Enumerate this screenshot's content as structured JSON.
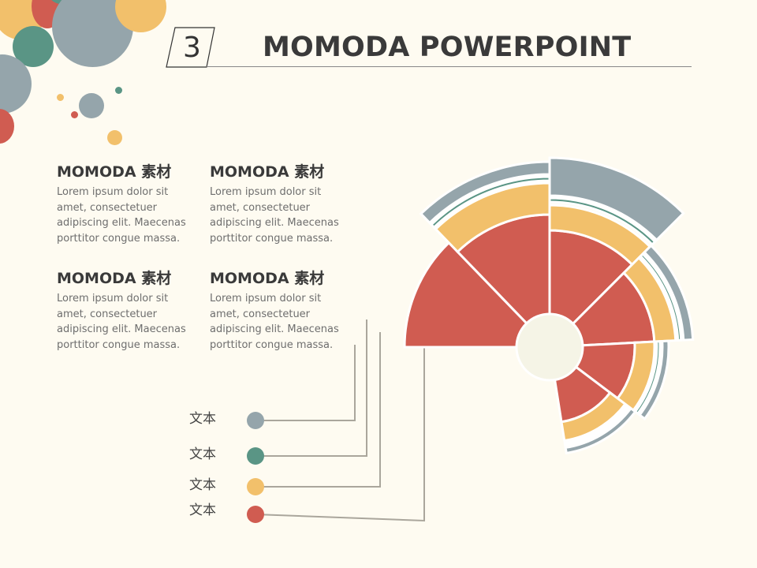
{
  "slide": {
    "number": "3",
    "title": "MOMODA POWERPOINT"
  },
  "blocks": [
    {
      "heading": "MOMODA 素材",
      "body": "Lorem ipsum dolor sit amet, consectetuer adipiscing elit. Maecenas porttitor congue massa."
    },
    {
      "heading": "MOMODA 素材",
      "body": "Lorem ipsum dolor sit amet, consectetuer adipiscing elit. Maecenas porttitor congue massa."
    },
    {
      "heading": "MOMODA 素材",
      "body": "Lorem ipsum dolor sit amet, consectetuer adipiscing elit. Maecenas porttitor congue massa."
    },
    {
      "heading": "MOMODA 素材",
      "body": "Lorem ipsum dolor sit amet, consectetuer adipiscing elit. Maecenas porttitor congue massa."
    }
  ],
  "legend": [
    {
      "label": "文本",
      "color": "#95a5ab"
    },
    {
      "label": "文本",
      "color": "#5a9585"
    },
    {
      "label": "文本",
      "color": "#f2c06b"
    },
    {
      "label": "文本",
      "color": "#d05c51"
    }
  ],
  "colors": {
    "red": "#d05c51",
    "yellow": "#f2c06b",
    "teal": "#5a9585",
    "gray": "#95a5ab",
    "center": "#f5f4e6",
    "background": "#fefbf1"
  }
}
